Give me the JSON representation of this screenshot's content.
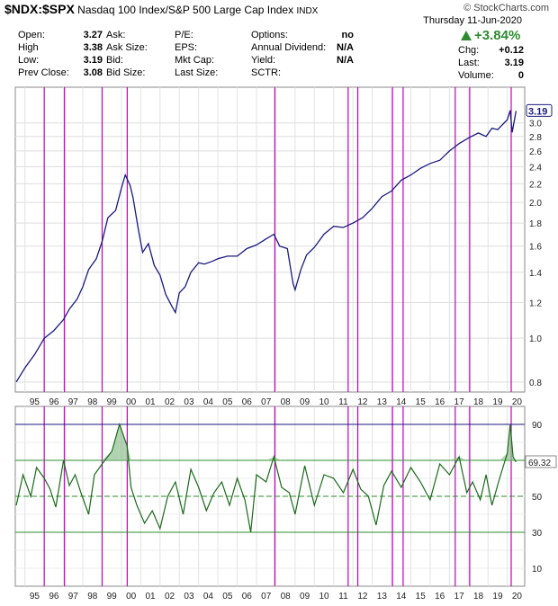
{
  "header": {
    "symbol": "$NDX:$SPX",
    "name": "Nasdaq 100 Index/S&P 500 Large Cap Index",
    "exchange": "INDX",
    "source": "© StockCharts.com",
    "date": "Thursday  11-Jun-2020",
    "change_pct": "+3.84%",
    "change_color": "#2e8b2e",
    "right": [
      {
        "label": "Chg:",
        "value": "+0.12"
      },
      {
        "label": "Last:",
        "value": "3.19"
      },
      {
        "label": "Volume:",
        "value": "0"
      }
    ],
    "quote": [
      [
        {
          "label": "Open:",
          "value": "3.27"
        },
        {
          "label": "Ask:",
          "value": ""
        },
        {
          "label": "P/E:",
          "value": ""
        },
        {
          "label": "Options:",
          "value": "no"
        }
      ],
      [
        {
          "label": "High",
          "value": "3.38"
        },
        {
          "label": "Ask Size:",
          "value": ""
        },
        {
          "label": "EPS:",
          "value": ""
        },
        {
          "label": "Annual Dividend:",
          "value": "N/A"
        }
      ],
      [
        {
          "label": "Low:",
          "value": "3.19"
        },
        {
          "label": "Bid:",
          "value": ""
        },
        {
          "label": "Mkt Cap:",
          "value": ""
        },
        {
          "label": "Yield:",
          "value": "N/A"
        }
      ],
      [
        {
          "label": "Prev Close:",
          "value": "3.08"
        },
        {
          "label": "Bid Size:",
          "value": ""
        },
        {
          "label": "Last Size:",
          "value": ""
        },
        {
          "label": "SCTR:",
          "value": ""
        }
      ]
    ]
  },
  "chart_data": [
    {
      "type": "line",
      "panel": "price",
      "scale": "log",
      "ylim": [
        0.76,
        3.6
      ],
      "y_ticks": [
        0.8,
        1.0,
        1.2,
        1.4,
        1.6,
        1.8,
        2.0,
        2.2,
        2.4,
        2.6,
        2.8,
        3.0
      ],
      "x_ticks": [
        "95",
        "96",
        "97",
        "98",
        "99",
        "00",
        "01",
        "02",
        "03",
        "04",
        "05",
        "06",
        "07",
        "08",
        "09",
        "10",
        "11",
        "12",
        "13",
        "14",
        "15",
        "16",
        "17",
        "18",
        "19",
        "20"
      ],
      "xlim": [
        1994.5,
        2020.9
      ],
      "last_label": "3.19",
      "line_color": "#1a1a80",
      "x": [
        1994.55,
        1995.0,
        1995.5,
        1996.0,
        1996.5,
        1997.0,
        1997.3,
        1997.7,
        1998.0,
        1998.3,
        1998.7,
        1999.0,
        1999.3,
        1999.7,
        2000.0,
        2000.2,
        2000.45,
        2000.6,
        2000.9,
        2001.1,
        2001.4,
        2001.7,
        2002.0,
        2002.3,
        2002.6,
        2002.8,
        2003.0,
        2003.3,
        2003.6,
        2004.0,
        2004.3,
        2004.7,
        2005.0,
        2005.5,
        2006.0,
        2006.5,
        2007.0,
        2007.5,
        2007.9,
        2008.2,
        2008.6,
        2008.9,
        2009.0,
        2009.3,
        2009.6,
        2010.0,
        2010.5,
        2011.0,
        2011.5,
        2012.0,
        2012.5,
        2013.0,
        2013.5,
        2014.0,
        2014.5,
        2015.0,
        2015.5,
        2016.0,
        2016.5,
        2017.0,
        2017.5,
        2018.0,
        2018.5,
        2018.9,
        2019.2,
        2019.5,
        2020.0,
        2020.15,
        2020.25,
        2020.45
      ],
      "y": [
        0.8,
        0.86,
        0.92,
        1.0,
        1.04,
        1.1,
        1.16,
        1.22,
        1.3,
        1.42,
        1.5,
        1.64,
        1.85,
        1.92,
        2.15,
        2.3,
        2.18,
        2.05,
        1.72,
        1.55,
        1.62,
        1.45,
        1.38,
        1.25,
        1.18,
        1.14,
        1.26,
        1.3,
        1.4,
        1.47,
        1.46,
        1.48,
        1.5,
        1.52,
        1.52,
        1.58,
        1.61,
        1.66,
        1.7,
        1.6,
        1.58,
        1.32,
        1.28,
        1.42,
        1.53,
        1.59,
        1.7,
        1.77,
        1.76,
        1.8,
        1.85,
        1.94,
        2.06,
        2.12,
        2.24,
        2.3,
        2.38,
        2.44,
        2.48,
        2.6,
        2.7,
        2.78,
        2.85,
        2.8,
        2.92,
        2.9,
        3.05,
        3.2,
        2.86,
        3.19
      ]
    },
    {
      "type": "line",
      "panel": "indicator",
      "ylim": [
        0,
        100
      ],
      "y_ticks": [
        10,
        30,
        50,
        70,
        90
      ],
      "ref_lines": [
        30,
        50,
        70,
        90
      ],
      "last_label": "69.32",
      "xlim": [
        1994.5,
        2020.9
      ],
      "line_color": "#1a6a1a",
      "x": [
        1994.55,
        1994.9,
        1995.3,
        1995.6,
        1996.0,
        1996.3,
        1996.6,
        1997.0,
        1997.3,
        1997.6,
        1997.9,
        1998.3,
        1998.6,
        1999.0,
        1999.5,
        1999.9,
        2000.3,
        2000.5,
        2000.8,
        2001.2,
        2001.6,
        2002.0,
        2002.4,
        2002.8,
        2003.2,
        2003.6,
        2004.0,
        2004.4,
        2004.8,
        2005.2,
        2005.6,
        2006.0,
        2006.4,
        2006.7,
        2007.0,
        2007.5,
        2007.9,
        2008.3,
        2008.7,
        2009.0,
        2009.5,
        2010.0,
        2010.5,
        2011.0,
        2011.5,
        2012.0,
        2012.4,
        2012.8,
        2013.2,
        2013.6,
        2014.0,
        2014.5,
        2015.0,
        2015.5,
        2016.0,
        2016.5,
        2017.0,
        2017.5,
        2017.9,
        2018.2,
        2018.6,
        2018.9,
        2019.2,
        2019.6,
        2020.0,
        2020.15,
        2020.3,
        2020.45
      ],
      "y": [
        45,
        62,
        50,
        66,
        60,
        54,
        44,
        70,
        56,
        62,
        52,
        40,
        62,
        68,
        75,
        90,
        78,
        55,
        45,
        35,
        42,
        32,
        50,
        58,
        40,
        65,
        55,
        42,
        52,
        58,
        45,
        60,
        48,
        30,
        62,
        58,
        72,
        55,
        52,
        40,
        67,
        45,
        62,
        60,
        52,
        65,
        54,
        50,
        34,
        56,
        64,
        55,
        66,
        58,
        48,
        68,
        62,
        72,
        52,
        58,
        48,
        62,
        45,
        60,
        74,
        90,
        72,
        69
      ]
    }
  ],
  "event_years": [
    1996.0,
    1997.05,
    1999.0,
    2000.3,
    2007.95,
    2011.75,
    2012.25,
    2014.05,
    2014.6,
    2017.3,
    2018.05,
    2020.2
  ]
}
